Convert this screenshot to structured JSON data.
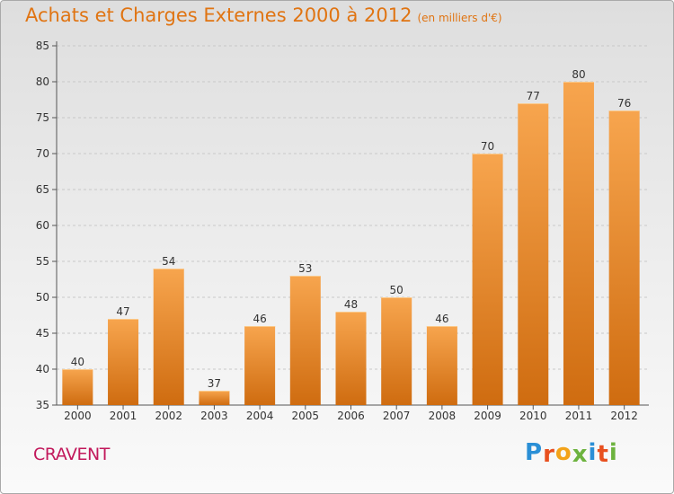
{
  "chart_data": {
    "type": "bar",
    "title": "Achats et Charges Externes 2000 à 2012",
    "unit_label": "(en milliers d'€)",
    "categories": [
      "2000",
      "2001",
      "2002",
      "2003",
      "2004",
      "2005",
      "2006",
      "2007",
      "2008",
      "2009",
      "2010",
      "2011",
      "2012"
    ],
    "values": [
      40,
      47,
      54,
      37,
      46,
      53,
      48,
      50,
      46,
      70,
      77,
      80,
      76
    ],
    "ylim": [
      35,
      85
    ],
    "yticks": [
      35,
      40,
      45,
      50,
      55,
      60,
      65,
      70,
      75,
      80,
      85
    ],
    "grid": "horizontal-dashed",
    "legend": "none",
    "colors": {
      "bar_top": "#f7a54e",
      "bar_bottom": "#cf6c10",
      "title": "#e07412"
    }
  },
  "footer": {
    "commune": "CRAVENT",
    "commune_color": "#c2185b",
    "logo": [
      {
        "ch": "P",
        "color": "#2a8fd6"
      },
      {
        "ch": "r",
        "color": "#e8501f"
      },
      {
        "ch": "o",
        "color": "#f3a31a"
      },
      {
        "ch": "x",
        "color": "#6db33f"
      },
      {
        "ch": "i",
        "color": "#2a8fd6"
      },
      {
        "ch": "t",
        "color": "#e8501f"
      },
      {
        "ch": "i",
        "color": "#6db33f"
      }
    ]
  }
}
